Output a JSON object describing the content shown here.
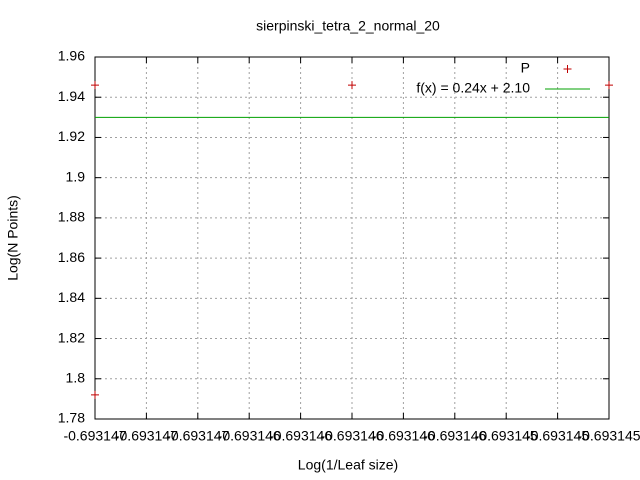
{
  "chart_data": {
    "type": "scatter",
    "title": "sierpinski_tetra_2_normal_20",
    "x_label": "Log(1/Leaf size)",
    "y_label": "Log(N Points)",
    "xlim": [
      -0.693147,
      -0.693145
    ],
    "ylim": [
      1.78,
      1.96
    ],
    "xticks": [
      {
        "value": -0.693147,
        "label": "-0.693147"
      },
      {
        "value": -0.6931468,
        "label": "-0.693147"
      },
      {
        "value": -0.6931466,
        "label": "-0.693147"
      },
      {
        "value": -0.6931464,
        "label": "-0.693146"
      },
      {
        "value": -0.6931462,
        "label": "-0.693146"
      },
      {
        "value": -0.693146,
        "label": "-0.693146"
      },
      {
        "value": -0.6931458,
        "label": "-0.693146"
      },
      {
        "value": -0.6931456,
        "label": "-0.693146"
      },
      {
        "value": -0.6931454,
        "label": "-0.693145"
      },
      {
        "value": -0.6931452,
        "label": "-0.693145"
      },
      {
        "value": -0.693145,
        "label": "-0.693145"
      }
    ],
    "yticks": [
      1.78,
      1.8,
      1.82,
      1.84,
      1.86,
      1.88,
      1.9,
      1.92,
      1.94,
      1.96
    ],
    "grid": true,
    "legend": "top-right",
    "series": [
      {
        "name": "P",
        "type": "scatter",
        "color": "#c00000",
        "x": [
          -0.693147,
          -0.693147,
          -0.693146,
          -0.693145
        ],
        "values": [
          1.946,
          1.792,
          1.946,
          1.946
        ]
      },
      {
        "name": "f(x) = 0.24x + 2.10",
        "type": "line",
        "color": "#00a000",
        "x": [
          -0.693147,
          -0.693145
        ],
        "values": [
          1.93,
          1.93
        ]
      }
    ]
  }
}
